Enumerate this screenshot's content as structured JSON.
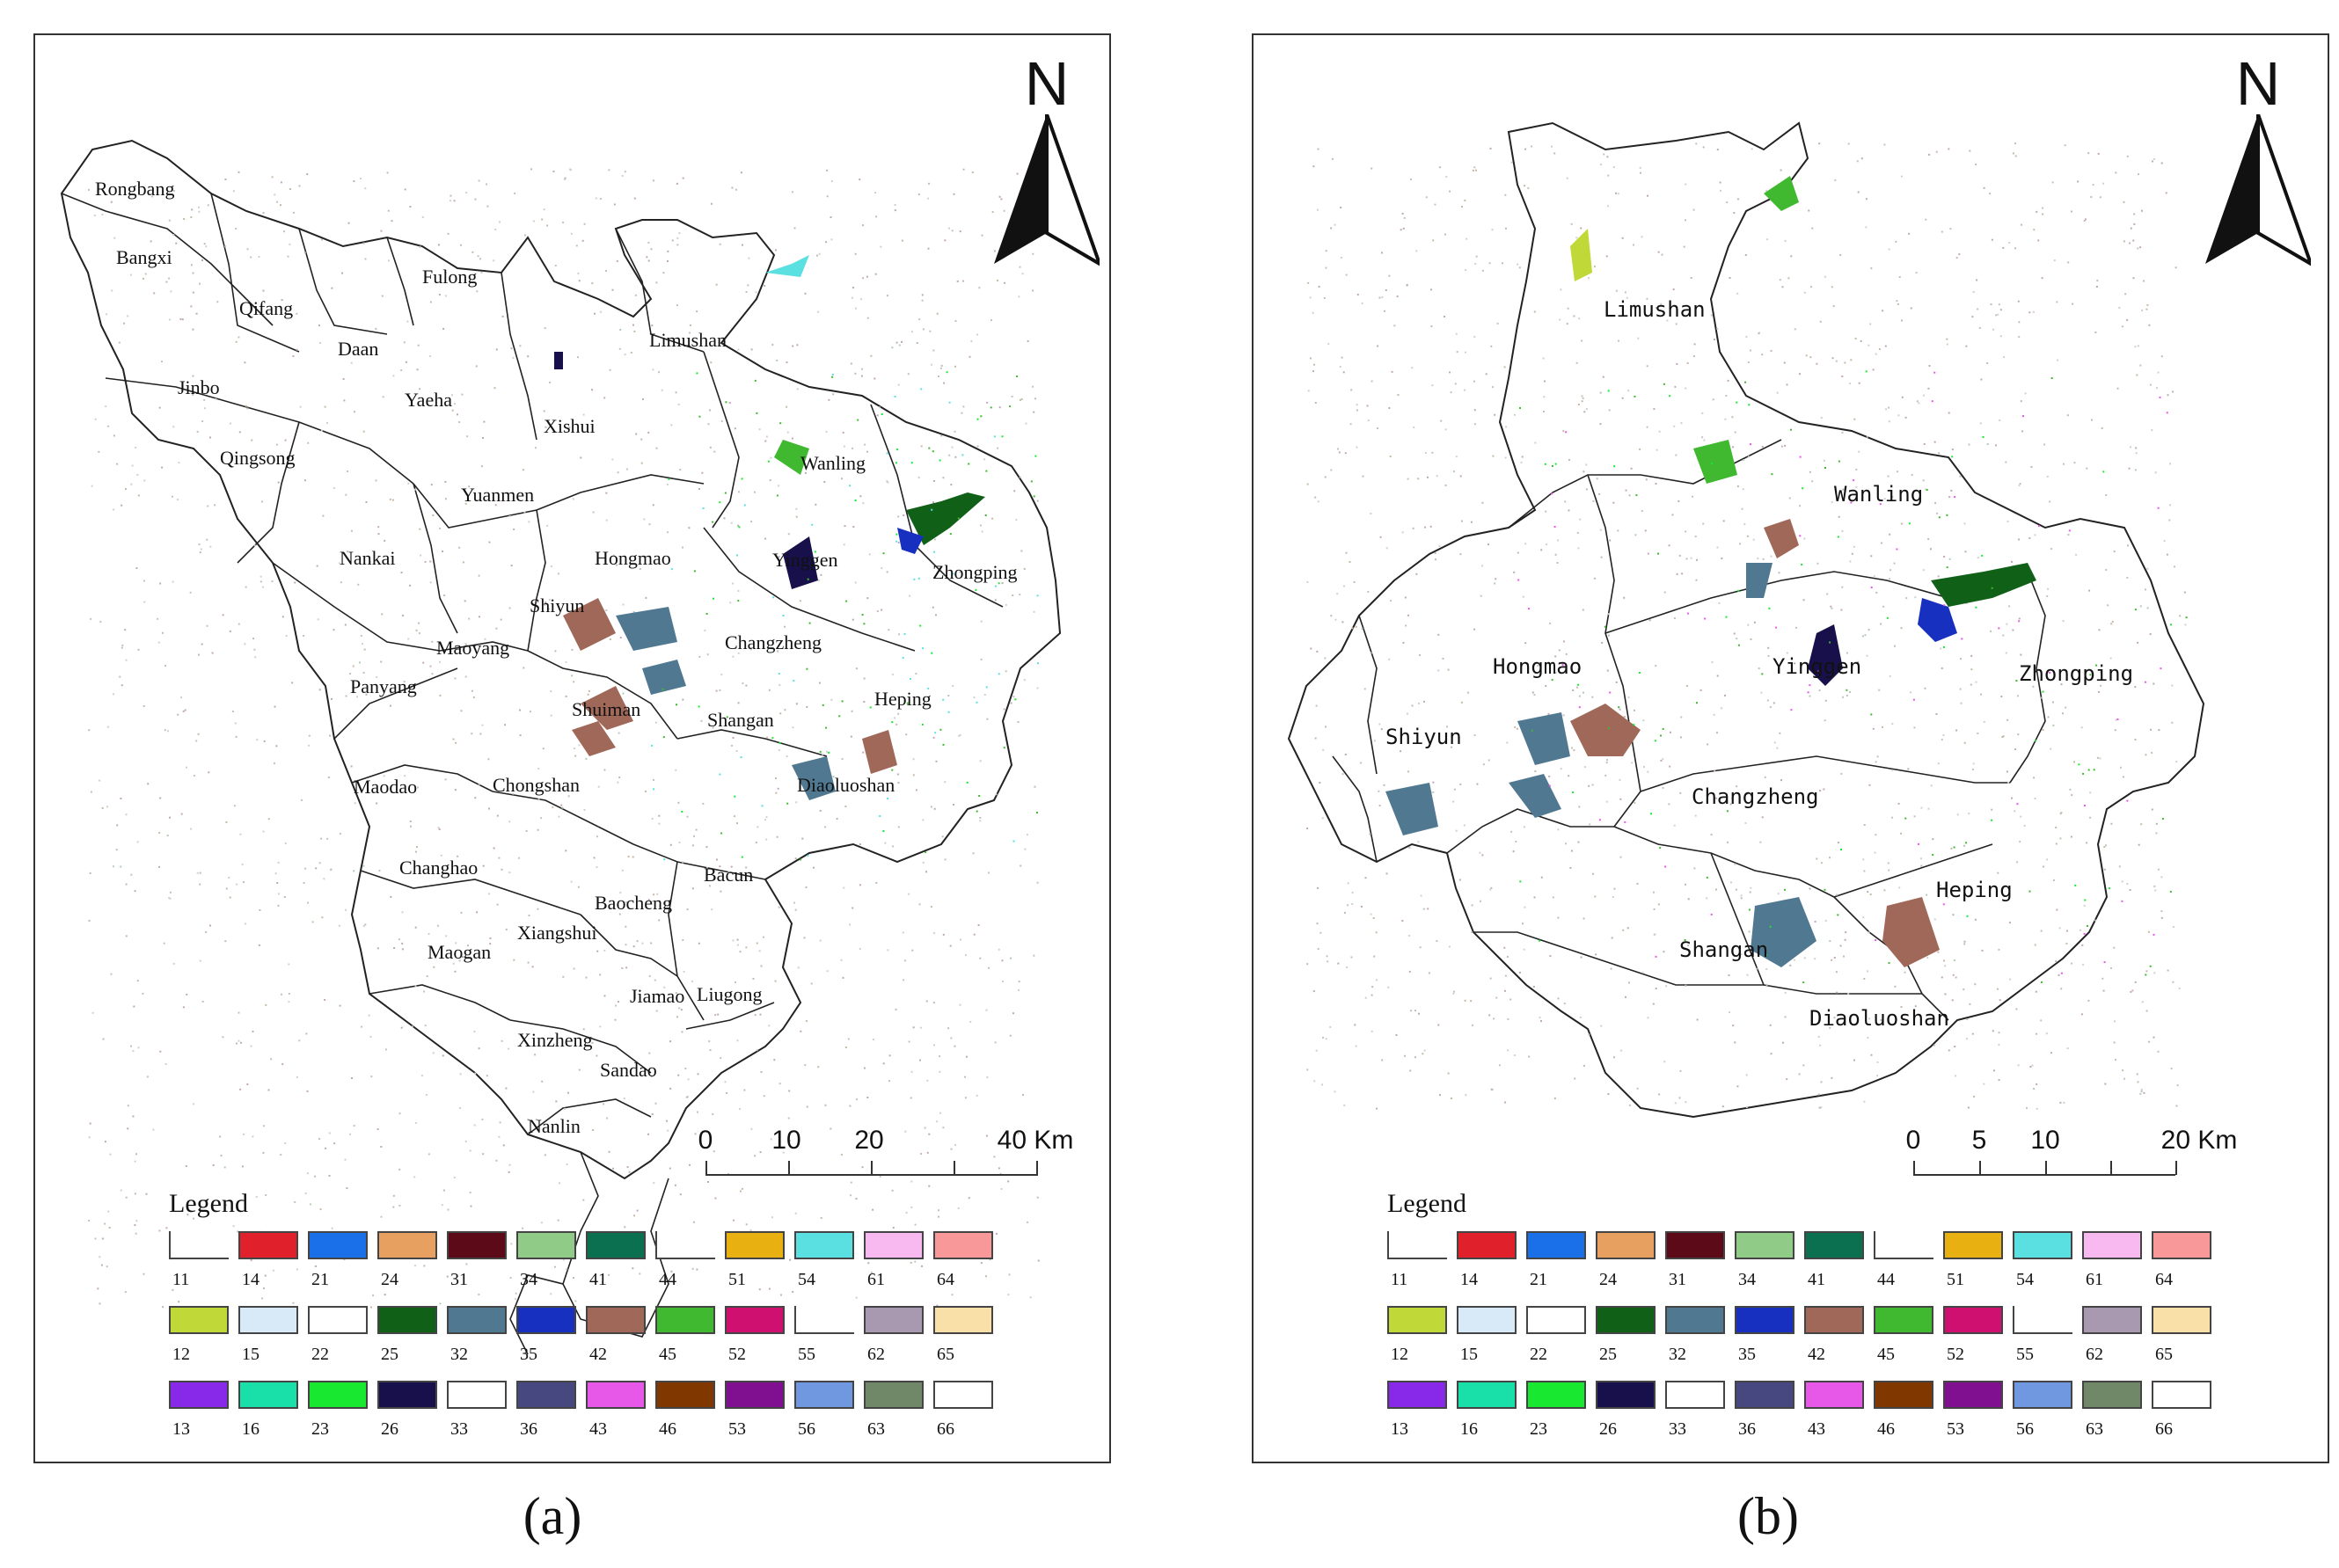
{
  "legend_title": "Legend",
  "north_letter": "N",
  "legend_items": [
    {
      "code": "11",
      "color": "#ffffff",
      "open": true
    },
    {
      "code": "14",
      "color": "#e0202a"
    },
    {
      "code": "21",
      "color": "#1a70e8"
    },
    {
      "code": "24",
      "color": "#e8a060"
    },
    {
      "code": "31",
      "color": "#5c0a18"
    },
    {
      "code": "34",
      "color": "#90cc88"
    },
    {
      "code": "41",
      "color": "#0a7050"
    },
    {
      "code": "44",
      "color": "#ffffff",
      "open": true
    },
    {
      "code": "51",
      "color": "#e8b010"
    },
    {
      "code": "54",
      "color": "#5ae0e0"
    },
    {
      "code": "61",
      "color": "#f8b8f0"
    },
    {
      "code": "64",
      "color": "#f89898"
    },
    {
      "code": "12",
      "color": "#c0d838"
    },
    {
      "code": "15",
      "color": "#d8eaf8"
    },
    {
      "code": "22",
      "color": "#ffffff"
    },
    {
      "code": "25",
      "color": "#106018"
    },
    {
      "code": "32",
      "color": "#507890"
    },
    {
      "code": "35",
      "color": "#1830c0"
    },
    {
      "code": "42",
      "color": "#a06858"
    },
    {
      "code": "45",
      "color": "#40b830"
    },
    {
      "code": "52",
      "color": "#d01070"
    },
    {
      "code": "55",
      "color": "#ffffff",
      "open": true
    },
    {
      "code": "62",
      "color": "#a898b0"
    },
    {
      "code": "65",
      "color": "#f8e0a8"
    },
    {
      "code": "13",
      "color": "#8828e8"
    },
    {
      "code": "16",
      "color": "#18e0a8"
    },
    {
      "code": "23",
      "color": "#18e830"
    },
    {
      "code": "26",
      "color": "#18104a"
    },
    {
      "code": "33",
      "color": "#ffffff"
    },
    {
      "code": "36",
      "color": "#484880"
    },
    {
      "code": "43",
      "color": "#e858e8"
    },
    {
      "code": "46",
      "color": "#803800"
    },
    {
      "code": "53",
      "color": "#801090"
    },
    {
      "code": "56",
      "color": "#7098e0"
    },
    {
      "code": "63",
      "color": "#708868"
    },
    {
      "code": "66",
      "color": "#ffffff"
    }
  ],
  "panel_a": {
    "caption": "(a)",
    "scale_labels": [
      "0",
      "10",
      "20",
      "40 Km"
    ],
    "regions": [
      "Rongbang",
      "Bangxi",
      "Qifang",
      "Fulong",
      "Daan",
      "Jinbo",
      "Yaeha",
      "Xishui",
      "Limushan",
      "Qingsong",
      "Wanling",
      "Yuanmen",
      "Nankai",
      "Hongmao",
      "Yinggen",
      "Zhongping",
      "Shiyun",
      "Changzheng",
      "Maoyang",
      "Panyang",
      "Shuiman",
      "Heping",
      "Shangan",
      "Maodao",
      "Chongshan",
      "Diaoluoshan",
      "Changhao",
      "Bacun",
      "Baocheng",
      "Xiangshui",
      "Maogan",
      "Jiamao",
      "Liugong",
      "Xinzheng",
      "Sandao",
      "Nanlin"
    ]
  },
  "panel_b": {
    "caption": "(b)",
    "scale_labels": [
      "0",
      "5",
      "10",
      "20 Km"
    ],
    "regions": [
      "Limushan",
      "Wanling",
      "Hongmao",
      "Yinggen",
      "Zhongping",
      "Shiyun",
      "Changzheng",
      "Heping",
      "Shangan",
      "Diaoluoshan"
    ]
  }
}
